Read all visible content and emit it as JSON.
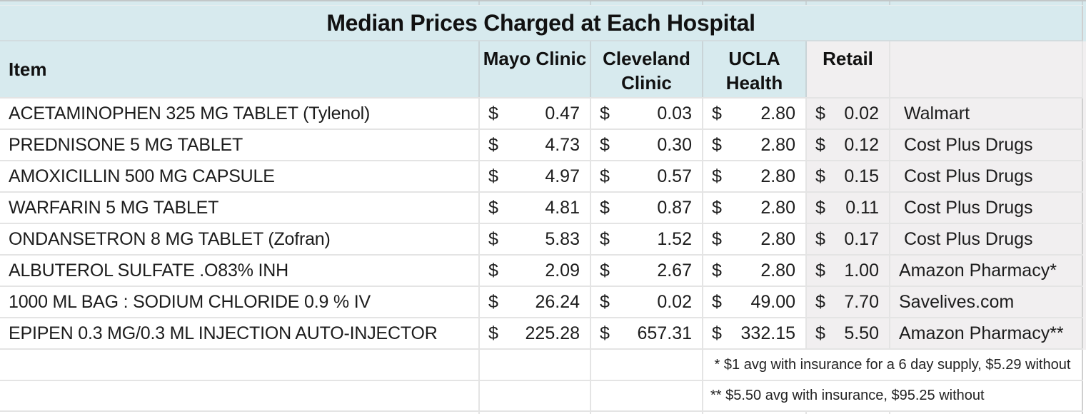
{
  "title": "Median Prices Charged at Each Hospital",
  "currency": {
    "symbol": "$"
  },
  "columns": {
    "item": "Item",
    "mayo": "Mayo Clinic",
    "cleveland": "Cleveland Clinic",
    "ucla": "UCLA Health",
    "retail": "Retail",
    "source": ""
  },
  "rows": [
    {
      "item": "ACETAMINOPHEN 325 MG TABLET (Tylenol)",
      "mayo": "0.47",
      "cleveland": "0.03",
      "ucla": "2.80",
      "retail": "0.02",
      "source": " Walmart"
    },
    {
      "item": "PREDNISONE 5 MG TABLET",
      "mayo": "4.73",
      "cleveland": "0.30",
      "ucla": "2.80",
      "retail": "0.12",
      "source": " Cost Plus Drugs"
    },
    {
      "item": "AMOXICILLIN 500 MG CAPSULE",
      "mayo": "4.97",
      "cleveland": "0.57",
      "ucla": "2.80",
      "retail": "0.15",
      "source": " Cost Plus Drugs"
    },
    {
      "item": "WARFARIN 5 MG TABLET",
      "mayo": "4.81",
      "cleveland": "0.87",
      "ucla": "2.80",
      "retail": "0.11",
      "source": " Cost Plus Drugs"
    },
    {
      "item": "ONDANSETRON 8 MG TABLET (Zofran)",
      "mayo": "5.83",
      "cleveland": "1.52",
      "ucla": "2.80",
      "retail": "0.17",
      "source": " Cost Plus Drugs"
    },
    {
      "item": "ALBUTEROL SULFATE .O83% INH",
      "mayo": "2.09",
      "cleveland": "2.67",
      "ucla": "2.80",
      "retail": "1.00",
      "source": "Amazon Pharmacy*"
    },
    {
      "item": "1000 ML BAG : SODIUM CHLORIDE 0.9 % IV",
      "mayo": "26.24",
      "cleveland": "0.02",
      "ucla": "49.00",
      "retail": "7.70",
      "source": "Savelives.com"
    },
    {
      "item": "EPIPEN 0.3 MG/0.3 ML INJECTION AUTO-INJECTOR",
      "mayo": "225.28",
      "cleveland": "657.31",
      "ucla": "332.15",
      "retail": "5.50",
      "source": "Amazon Pharmacy**"
    }
  ],
  "footnotes": [
    " * $1 avg with insurance for a 6 day supply, $5.29 without",
    "** $5.50 avg with insurance, $95.25 without"
  ],
  "colors": {
    "header_blue": "#d7eaee",
    "cell_gray": "#f1eff0"
  }
}
